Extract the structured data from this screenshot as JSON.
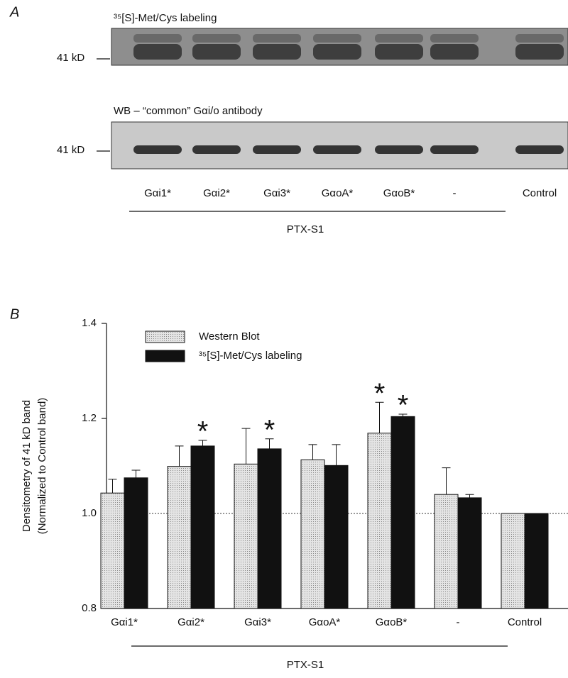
{
  "panel_a": {
    "label": "A",
    "blots": [
      {
        "title": "³⁵[S]-Met/Cys labeling",
        "marker": "41 kD"
      },
      {
        "title": "WB – “common” Gαi/o antibody",
        "marker": "41 kD"
      }
    ],
    "lanes": [
      "Gαi1*",
      "Gαi2*",
      "Gαi3*",
      "GαoA*",
      "GαoB*",
      "-",
      "Control"
    ],
    "group_label": "PTX-S1"
  },
  "chart_data": {
    "type": "bar",
    "panel_label": "B",
    "y_label": [
      "Densitometry of 41 kD band",
      "(Normalized to Control band)"
    ],
    "categories": [
      "Gαi1*",
      "Gαi2*",
      "Gαi3*",
      "GαoA*",
      "GαoB*",
      "-",
      "Control"
    ],
    "group_label": "PTX-S1",
    "ylim": [
      0.8,
      1.4
    ],
    "yticks": [
      0.8,
      {
        "value": 1,
        "label": "1.0"
      },
      1.2,
      1.4
    ],
    "reference_line": 1,
    "marker": "*",
    "series": [
      {
        "name": "Western Blot",
        "color": "#d8d8d8",
        "values": [
          1.043,
          1.099,
          1.104,
          1.113,
          1.169,
          1.04,
          1.0
        ],
        "errors": [
          0.029,
          0.043,
          0.075,
          0.032,
          0.065,
          0.056,
          0
        ],
        "significant": [
          false,
          false,
          false,
          false,
          true,
          false,
          false
        ]
      },
      {
        "name": "³⁵[S]-Met/Cys labeling",
        "color": "#111111",
        "values": [
          1.075,
          1.142,
          1.136,
          1.101,
          1.204,
          1.033,
          1.0
        ],
        "errors": [
          0.016,
          0.012,
          0.021,
          0.044,
          0.005,
          0.007,
          0
        ],
        "significant": [
          false,
          true,
          true,
          false,
          true,
          false,
          false
        ]
      }
    ]
  }
}
